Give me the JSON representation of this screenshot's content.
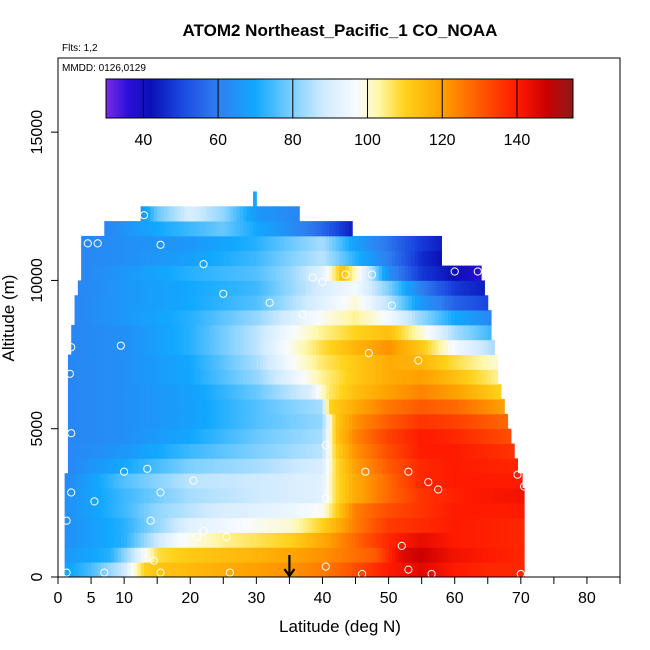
{
  "chart_data": {
    "type": "heatmap",
    "title": "ATOM2 Northeast_Pacific_1 CO_NOAA",
    "flights_label": "Flts: 1,2",
    "mmdd_label": "MMDD: 0126,0129",
    "xlabel": "Latitude (deg N)",
    "ylabel": "Altitude (m)",
    "xlim": [
      0,
      85
    ],
    "ylim": [
      0,
      17500
    ],
    "x_ticks": [
      0,
      5,
      10,
      20,
      30,
      40,
      50,
      60,
      70,
      80
    ],
    "x_tick_labels": [
      "0",
      "5",
      "10",
      "20",
      "30",
      "40",
      "50",
      "60",
      "70",
      "80"
    ],
    "y_ticks": [
      0,
      5000,
      10000,
      15000
    ],
    "y_tick_labels": [
      "0",
      "5000",
      "10000",
      "15000"
    ],
    "colorbar": {
      "min": 30,
      "max": 155,
      "ticks": [
        40,
        60,
        80,
        100,
        120,
        140
      ],
      "tick_labels": [
        "40",
        "60",
        "80",
        "100",
        "120",
        "140"
      ],
      "stops": [
        {
          "v": 30,
          "c": "#7a2be8"
        },
        {
          "v": 36,
          "c": "#2a0fd6"
        },
        {
          "v": 42,
          "c": "#0a10b8"
        },
        {
          "v": 50,
          "c": "#1a46e0"
        },
        {
          "v": 60,
          "c": "#2f7ff0"
        },
        {
          "v": 70,
          "c": "#11a8ff"
        },
        {
          "v": 80,
          "c": "#7fd0ff"
        },
        {
          "v": 88,
          "c": "#cfeaff"
        },
        {
          "v": 97,
          "c": "#f8fbff"
        },
        {
          "v": 103,
          "c": "#fff7a8"
        },
        {
          "v": 110,
          "c": "#ffd21a"
        },
        {
          "v": 120,
          "c": "#ffa000"
        },
        {
          "v": 130,
          "c": "#ff5a00"
        },
        {
          "v": 140,
          "c": "#ff1a00"
        },
        {
          "v": 148,
          "c": "#cc0000"
        },
        {
          "v": 155,
          "c": "#8c1a1a"
        }
      ]
    },
    "arrow_latitude": 35,
    "grid": false,
    "altitude_bins": [
      {
        "alt": 250,
        "lat": [
          1,
          70.5
        ],
        "x": [
          1,
          5,
          10,
          13,
          15,
          20,
          30,
          35,
          40,
          45,
          50,
          55,
          60,
          65,
          70.5
        ],
        "v": [
          68,
          75,
          88,
          110,
          113,
          115,
          120,
          122,
          125,
          132,
          140,
          145,
          140,
          138,
          138
        ]
      },
      {
        "alt": 750,
        "lat": [
          1,
          70.5
        ],
        "x": [
          1,
          8,
          12,
          15,
          20,
          30,
          40,
          48,
          52,
          55,
          60,
          70.5
        ],
        "v": [
          66,
          72,
          90,
          108,
          112,
          116,
          122,
          130,
          145,
          148,
          142,
          138
        ]
      },
      {
        "alt": 1250,
        "lat": [
          1,
          70.5
        ],
        "x": [
          1,
          10,
          14,
          18,
          25,
          35,
          40,
          45,
          50,
          55,
          60,
          70.5
        ],
        "v": [
          64,
          72,
          85,
          96,
          104,
          110,
          118,
          128,
          138,
          144,
          140,
          138
        ]
      },
      {
        "alt": 1750,
        "lat": [
          1,
          70.5
        ],
        "x": [
          1,
          10,
          15,
          20,
          30,
          35,
          40,
          45,
          50,
          60,
          70.5
        ],
        "v": [
          64,
          72,
          82,
          92,
          98,
          100,
          110,
          125,
          135,
          140,
          138
        ]
      },
      {
        "alt": 2250,
        "lat": [
          1,
          70.5
        ],
        "x": [
          1,
          10,
          15,
          25,
          35,
          40,
          42,
          45,
          50,
          55,
          60,
          70.5
        ],
        "v": [
          64,
          74,
          82,
          90,
          94,
          98,
          110,
          125,
          132,
          136,
          140,
          140
        ]
      },
      {
        "alt": 2750,
        "lat": [
          1,
          70.5
        ],
        "x": [
          1,
          10,
          20,
          30,
          40,
          42,
          45,
          50,
          55,
          62,
          70.5
        ],
        "v": [
          64,
          74,
          84,
          88,
          92,
          108,
          118,
          128,
          136,
          140,
          142
        ]
      },
      {
        "alt": 3250,
        "lat": [
          1,
          70.2
        ],
        "x": [
          1,
          10,
          20,
          30,
          40,
          42,
          45,
          50,
          55,
          60,
          70.2
        ],
        "v": [
          62,
          76,
          86,
          88,
          92,
          108,
          118,
          128,
          138,
          140,
          140
        ]
      },
      {
        "alt": 3750,
        "lat": [
          1.5,
          69.5
        ],
        "x": [
          1.5,
          10,
          20,
          30,
          40,
          42,
          45,
          50,
          55,
          60,
          69.5
        ],
        "v": [
          62,
          70,
          80,
          84,
          90,
          108,
          120,
          130,
          138,
          140,
          138
        ]
      },
      {
        "alt": 4250,
        "lat": [
          1.5,
          69
        ],
        "x": [
          1.5,
          10,
          20,
          30,
          40,
          42,
          45,
          50,
          55,
          60,
          69
        ],
        "v": [
          62,
          66,
          74,
          80,
          86,
          110,
          122,
          132,
          140,
          140,
          136
        ]
      },
      {
        "alt": 4750,
        "lat": [
          1.5,
          68.5
        ],
        "x": [
          1.5,
          10,
          20,
          30,
          40,
          42,
          45,
          50,
          55,
          60,
          68.5
        ],
        "v": [
          62,
          64,
          70,
          78,
          84,
          112,
          124,
          134,
          140,
          138,
          132
        ]
      },
      {
        "alt": 5250,
        "lat": [
          1.5,
          68
        ],
        "x": [
          1.5,
          10,
          20,
          30,
          40,
          42,
          45,
          50,
          55,
          60,
          68
        ],
        "v": [
          62,
          64,
          68,
          76,
          82,
          112,
          122,
          130,
          136,
          134,
          128
        ]
      },
      {
        "alt": 5750,
        "lat": [
          1.5,
          67.5
        ],
        "x": [
          1.5,
          10,
          20,
          30,
          40,
          41,
          45,
          50,
          55,
          60,
          67.5
        ],
        "v": [
          62,
          64,
          68,
          76,
          84,
          110,
          118,
          126,
          130,
          128,
          120
        ]
      },
      {
        "alt": 6250,
        "lat": [
          1.5,
          67
        ],
        "x": [
          1.5,
          10,
          20,
          30,
          38,
          41,
          45,
          50,
          55,
          60,
          67
        ],
        "v": [
          62,
          64,
          68,
          78,
          90,
          106,
          114,
          120,
          124,
          120,
          110
        ]
      },
      {
        "alt": 6750,
        "lat": [
          1.5,
          66.5
        ],
        "x": [
          1.5,
          10,
          20,
          30,
          35,
          40,
          45,
          50,
          55,
          60,
          66.5
        ],
        "v": [
          62,
          64,
          70,
          82,
          92,
          104,
          112,
          118,
          120,
          114,
          104
        ]
      },
      {
        "alt": 7250,
        "lat": [
          1.5,
          66.5
        ],
        "x": [
          1.5,
          10,
          20,
          30,
          35,
          40,
          45,
          50,
          55,
          60,
          66.5
        ],
        "v": [
          62,
          64,
          70,
          84,
          96,
          106,
          112,
          118,
          116,
          108,
          100
        ]
      },
      {
        "alt": 7750,
        "lat": [
          2,
          66
        ],
        "x": [
          2,
          10,
          20,
          30,
          35,
          40,
          45,
          50,
          55,
          60,
          66
        ],
        "v": [
          62,
          64,
          72,
          86,
          98,
          108,
          116,
          122,
          112,
          96,
          84
        ]
      },
      {
        "alt": 8250,
        "lat": [
          2,
          65.5
        ],
        "x": [
          2,
          10,
          20,
          30,
          35,
          40,
          45,
          50,
          55,
          60,
          65.5
        ],
        "v": [
          62,
          64,
          72,
          86,
          96,
          104,
          110,
          114,
          100,
          84,
          74
        ]
      },
      {
        "alt": 8750,
        "lat": [
          2.5,
          65.5
        ],
        "x": [
          2.5,
          10,
          20,
          30,
          35,
          40,
          45,
          50,
          55,
          60,
          65.5
        ],
        "v": [
          62,
          66,
          72,
          82,
          90,
          98,
          104,
          96,
          82,
          70,
          62
        ]
      },
      {
        "alt": 9250,
        "lat": [
          2.5,
          65
        ],
        "x": [
          2.5,
          10,
          20,
          30,
          35,
          40,
          45,
          50,
          55,
          60,
          65
        ],
        "v": [
          62,
          66,
          70,
          76,
          84,
          92,
          100,
          86,
          66,
          55,
          50
        ]
      },
      {
        "alt": 9750,
        "lat": [
          3,
          64.5
        ],
        "x": [
          3,
          10,
          20,
          30,
          35,
          40,
          45,
          50,
          55,
          60,
          64.5
        ],
        "v": [
          62,
          66,
          70,
          74,
          82,
          90,
          96,
          80,
          60,
          48,
          44
        ]
      },
      {
        "alt": 10250,
        "lat": [
          3.5,
          64
        ],
        "x": [
          3.5,
          10,
          20,
          30,
          35,
          40,
          43,
          47,
          50,
          55,
          60,
          64
        ],
        "v": [
          62,
          66,
          72,
          76,
          82,
          92,
          114,
          88,
          64,
          48,
          42,
          36
        ]
      },
      {
        "alt": 10750,
        "lat": [
          3.5,
          58
        ],
        "x": [
          3.5,
          10,
          20,
          30,
          35,
          40,
          45,
          50,
          55,
          58
        ],
        "v": [
          62,
          64,
          68,
          74,
          80,
          86,
          72,
          60,
          46,
          42
        ]
      },
      {
        "alt": 11250,
        "lat": [
          3.5,
          58
        ],
        "x": [
          3.5,
          10,
          20,
          30,
          35,
          40,
          45,
          50,
          55,
          58
        ],
        "v": [
          62,
          64,
          66,
          72,
          78,
          84,
          68,
          58,
          48,
          44
        ]
      },
      {
        "alt": 11750,
        "lat": [
          7,
          44.5
        ],
        "x": [
          7,
          15,
          25,
          30,
          35,
          40,
          44.5
        ],
        "v": [
          62,
          70,
          78,
          70,
          64,
          56,
          44
        ]
      },
      {
        "alt": 12250,
        "lat": [
          12.5,
          36.5
        ],
        "x": [
          12.5,
          15,
          20,
          25,
          30,
          36.5
        ],
        "v": [
          64,
          78,
          90,
          82,
          66,
          62
        ]
      },
      {
        "alt": 12750,
        "lat": [
          29.5,
          30
        ],
        "x": [
          29.5,
          30
        ],
        "v": [
          70,
          70
        ]
      }
    ],
    "sample_points": [
      [
        1.3,
        150
      ],
      [
        7,
        150
      ],
      [
        10,
        3550
      ],
      [
        14.5,
        550
      ],
      [
        15.5,
        150
      ],
      [
        22,
        1550
      ],
      [
        21,
        1350
      ],
      [
        25.5,
        1350
      ],
      [
        26,
        150
      ],
      [
        14,
        1900
      ],
      [
        1.3,
        1900
      ],
      [
        2,
        2850
      ],
      [
        5.5,
        2550
      ],
      [
        15.5,
        2850
      ],
      [
        20.5,
        3250
      ],
      [
        13.5,
        3650
      ],
      [
        2,
        4850
      ],
      [
        1.8,
        6850
      ],
      [
        2,
        7750
      ],
      [
        9.5,
        7800
      ],
      [
        4.5,
        11250
      ],
      [
        6,
        11250
      ],
      [
        13,
        12200
      ],
      [
        15.5,
        11200
      ],
      [
        22,
        10550
      ],
      [
        25,
        9550
      ],
      [
        32,
        9250
      ],
      [
        37,
        8850
      ],
      [
        38.5,
        10100
      ],
      [
        40,
        9950
      ],
      [
        43.5,
        10200
      ],
      [
        47.5,
        10200
      ],
      [
        50.5,
        9150
      ],
      [
        60,
        10300
      ],
      [
        63.5,
        10300
      ],
      [
        47,
        7550
      ],
      [
        54.5,
        7300
      ],
      [
        40.5,
        4450
      ],
      [
        46.5,
        3550
      ],
      [
        53,
        3550
      ],
      [
        56,
        3200
      ],
      [
        40.5,
        2650
      ],
      [
        57.5,
        2950
      ],
      [
        69.5,
        3450
      ],
      [
        70.5,
        3050
      ],
      [
        52,
        1050
      ],
      [
        40.5,
        350
      ],
      [
        46,
        100
      ],
      [
        53,
        250
      ],
      [
        56.5,
        100
      ],
      [
        70,
        100
      ]
    ]
  }
}
